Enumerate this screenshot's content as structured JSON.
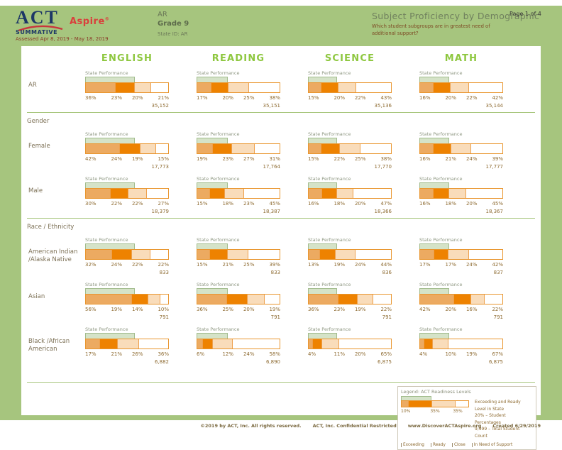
{
  "header": {
    "logo_act": "ACT",
    "logo_aspire": "Aspire",
    "logo_reg": "®",
    "program": "SUMMATIVE",
    "assessed": "Assessed Apr 8, 2019 - May 18, 2019",
    "org_name": "AR",
    "grade": "Grade 9",
    "state_id": "State ID: AR",
    "title": "Subject Proficiency by Demographic",
    "subtitle": "Which student subgroups are in greatest need of additional support?",
    "page_number": "Page 1 of 4"
  },
  "chart_data": {
    "type": "bar",
    "subtype": "horizontal-stacked-percent",
    "state_performance_label": "State Performance",
    "levels": [
      "Exceeding",
      "Ready",
      "Close",
      "In Need of Support"
    ],
    "level_colors": [
      "#ecaa61",
      "#ee8200",
      "#f9dcba",
      "#ffffff"
    ],
    "state_overlay_color": "#d5e3c8",
    "subjects": [
      {
        "label": "ENGLISH",
        "state_exceeding_ready_pct": 59
      },
      {
        "label": "READING",
        "state_exceeding_ready_pct": 37
      },
      {
        "label": "SCIENCE",
        "state_exceeding_ready_pct": 35
      },
      {
        "label": "MATH",
        "state_exceeding_ready_pct": 36
      }
    ],
    "groups": [
      {
        "section": "",
        "rows": [
          {
            "label": "AR",
            "cells": [
              {
                "pcts": [
                  36,
                  23,
                  20,
                  21
                ],
                "count": "35,152"
              },
              {
                "pcts": [
                  17,
                  20,
                  25,
                  38
                ],
                "count": "35,151"
              },
              {
                "pcts": [
                  15,
                  20,
                  22,
                  43
                ],
                "count": "35,136"
              },
              {
                "pcts": [
                  16,
                  20,
                  22,
                  42
                ],
                "count": "35,144"
              }
            ]
          }
        ]
      },
      {
        "section": "Gender",
        "rows": [
          {
            "label": "Female",
            "cells": [
              {
                "pcts": [
                  42,
                  24,
                  19,
                  15
                ],
                "count": "17,773"
              },
              {
                "pcts": [
                  19,
                  23,
                  27,
                  31
                ],
                "count": "17,764"
              },
              {
                "pcts": [
                  15,
                  22,
                  25,
                  38
                ],
                "count": "17,770"
              },
              {
                "pcts": [
                  16,
                  21,
                  24,
                  39
                ],
                "count": "17,777"
              }
            ]
          },
          {
            "label": "Male",
            "cells": [
              {
                "pcts": [
                  30,
                  22,
                  22,
                  27
                ],
                "count": "18,379"
              },
              {
                "pcts": [
                  15,
                  18,
                  23,
                  45
                ],
                "count": "18,387"
              },
              {
                "pcts": [
                  16,
                  18,
                  20,
                  47
                ],
                "count": "18,366"
              },
              {
                "pcts": [
                  16,
                  18,
                  20,
                  45
                ],
                "count": "18,367"
              }
            ]
          }
        ]
      },
      {
        "section": "Race / Ethnicity",
        "rows": [
          {
            "label": "American Indian /Alaska Native",
            "cells": [
              {
                "pcts": [
                  32,
                  24,
                  22,
                  22
                ],
                "count": "833"
              },
              {
                "pcts": [
                  15,
                  21,
                  25,
                  39
                ],
                "count": "833"
              },
              {
                "pcts": [
                  13,
                  19,
                  24,
                  44
                ],
                "count": "836"
              },
              {
                "pcts": [
                  17,
                  17,
                  24,
                  42
                ],
                "count": "837"
              }
            ]
          },
          {
            "label": "Asian",
            "cells": [
              {
                "pcts": [
                  56,
                  19,
                  14,
                  10
                ],
                "count": "791"
              },
              {
                "pcts": [
                  36,
                  25,
                  20,
                  19
                ],
                "count": "791"
              },
              {
                "pcts": [
                  36,
                  23,
                  19,
                  22
                ],
                "count": "791"
              },
              {
                "pcts": [
                  42,
                  20,
                  16,
                  22
                ],
                "count": "791"
              }
            ]
          },
          {
            "label": "Black /African American",
            "cells": [
              {
                "pcts": [
                  17,
                  21,
                  26,
                  36
                ],
                "count": "6,882"
              },
              {
                "pcts": [
                  6,
                  12,
                  24,
                  58
                ],
                "count": "6,890"
              },
              {
                "pcts": [
                  4,
                  11,
                  20,
                  65
                ],
                "count": "6,875"
              },
              {
                "pcts": [
                  4,
                  10,
                  19,
                  67
                ],
                "count": "6,875"
              }
            ]
          }
        ]
      }
    ]
  },
  "legend": {
    "title": "Legend: ACT Readiness Levels",
    "sample_bar": [
      10,
      35,
      35,
      20
    ],
    "sample_overlay_pct": 45,
    "sample_pcts": [
      "10%",
      "35%",
      "35%"
    ],
    "level_labels": [
      "Exceeding",
      "Ready",
      "Close",
      "In Need of Support"
    ],
    "callouts": [
      "Exceeding and Ready Level in State",
      "20% – Student Percentages",
      "9,999 – Total Student Count"
    ]
  },
  "footer": {
    "items": [
      "©2019 by ACT, Inc. All rights reserved.",
      "ACT, Inc. Confidential Restricted",
      "www.DiscoverACTAspire.org",
      "Created 6/29/2019"
    ]
  }
}
